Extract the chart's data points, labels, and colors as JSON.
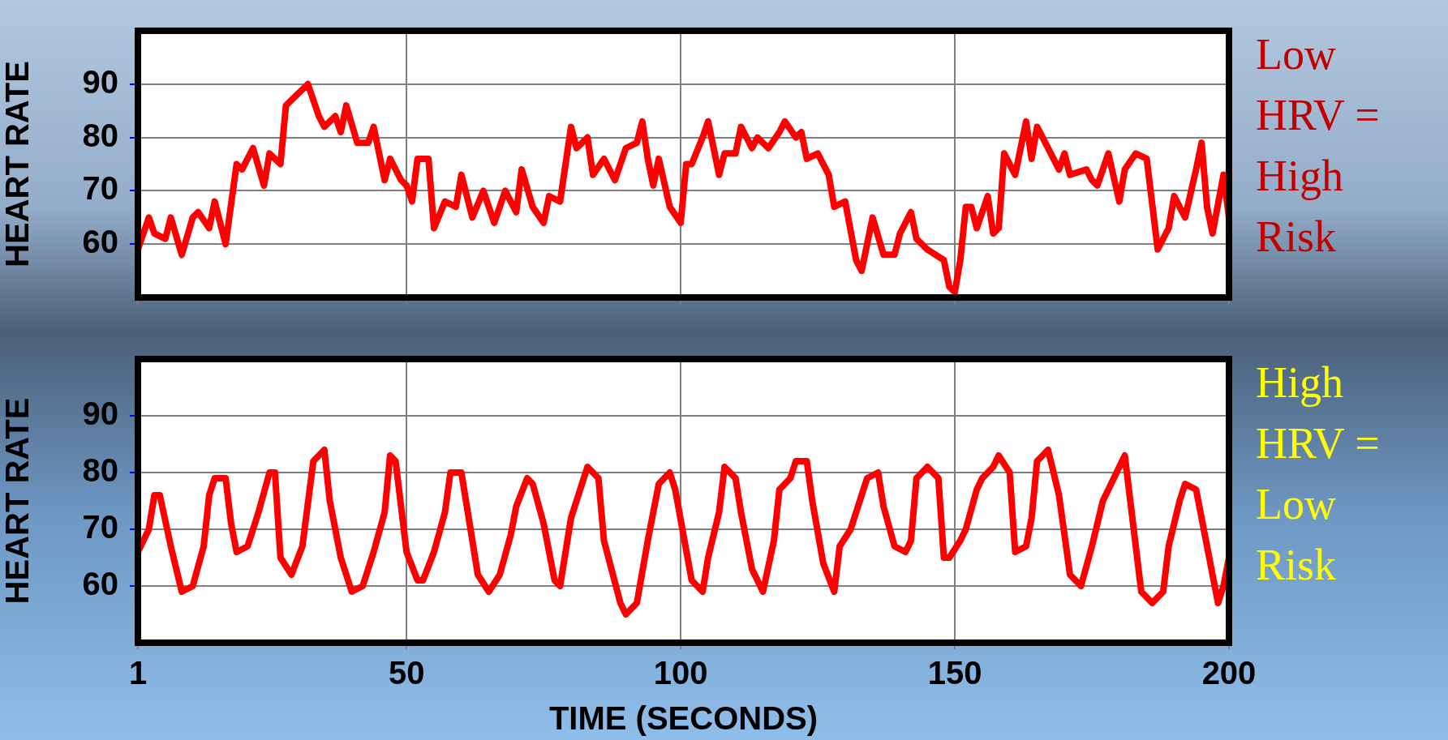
{
  "chart_data": [
    {
      "type": "line",
      "ylabel": "HEART RATE",
      "annotations": [
        "Low\nHRV =\nHigh\nRisk"
      ],
      "xlim": [
        1,
        200
      ],
      "xticks": [
        1,
        50,
        100,
        150,
        200
      ],
      "ylim": [
        50,
        100
      ],
      "yticks": [
        60,
        70,
        80,
        90
      ],
      "grid": true,
      "tick_labels": "y",
      "series": [
        {
          "color": "#ff0000",
          "x": [
            1,
            3,
            4,
            6,
            7,
            9,
            11,
            12,
            14,
            15,
            17,
            19,
            20,
            22,
            24,
            25,
            27,
            28,
            30,
            32,
            34,
            35,
            37,
            38,
            39,
            41,
            43,
            44,
            46,
            47,
            49,
            50,
            51,
            52,
            54,
            55,
            57,
            59,
            60,
            62,
            64,
            66,
            68,
            70,
            71,
            73,
            75,
            76,
            78,
            80,
            81,
            83,
            84,
            86,
            88,
            90,
            92,
            93,
            94,
            95,
            96,
            98,
            100,
            101,
            102,
            104,
            105,
            107,
            108,
            110,
            111,
            113,
            114,
            116,
            118,
            119,
            121,
            122,
            123,
            125,
            127,
            128,
            130,
            132,
            133,
            134,
            135,
            137,
            139,
            140,
            142,
            143,
            145,
            148,
            149,
            150,
            151,
            152,
            153,
            154,
            156,
            157,
            158,
            159,
            161,
            163,
            164,
            165,
            168,
            169,
            170,
            171,
            174,
            175,
            176,
            178,
            180,
            181,
            183,
            185,
            187,
            189,
            190,
            192,
            194,
            195,
            196,
            197,
            199,
            200
          ],
          "values": [
            59,
            65,
            62,
            61,
            65,
            58,
            65,
            66,
            63,
            68,
            60,
            75,
            74,
            78,
            71,
            77,
            75,
            86,
            88,
            90,
            84,
            82,
            84,
            81,
            86,
            79,
            79,
            82,
            72,
            76,
            72,
            71,
            68,
            76,
            76,
            63,
            68,
            67,
            73,
            65,
            70,
            64,
            70,
            66,
            74,
            67,
            64,
            69,
            68,
            82,
            78,
            80,
            73,
            76,
            72,
            78,
            79,
            83,
            76,
            71,
            76,
            67,
            64,
            75,
            75,
            80,
            83,
            73,
            77,
            77,
            82,
            78,
            80,
            78,
            81,
            83,
            80,
            81,
            76,
            77,
            73,
            67,
            68,
            57,
            55,
            60,
            65,
            58,
            58,
            62,
            66,
            61,
            59,
            57,
            52,
            51,
            57,
            67,
            67,
            63,
            69,
            62,
            63,
            77,
            73,
            83,
            76,
            82,
            76,
            74,
            77,
            73,
            74,
            72,
            71,
            77,
            68,
            74,
            77,
            76,
            59,
            63,
            69,
            65,
            74,
            79,
            67,
            62,
            73,
            65
          ]
        }
      ]
    },
    {
      "type": "line",
      "ylabel": "HEART RATE",
      "xlabel": "TIME (SECONDS)",
      "annotations": [
        "High\nHRV =\nLow\nRisk"
      ],
      "xlim": [
        1,
        200
      ],
      "xticks": [
        1,
        50,
        100,
        150,
        200
      ],
      "ylim": [
        50,
        100
      ],
      "yticks": [
        60,
        70,
        80,
        90
      ],
      "grid": true,
      "series": [
        {
          "color": "#ff0000",
          "x": [
            1,
            3,
            4,
            5,
            7,
            9,
            11,
            13,
            14,
            15,
            17,
            18,
            19,
            21,
            23,
            25,
            26,
            27,
            29,
            31,
            33,
            35,
            36,
            38,
            40,
            42,
            44,
            46,
            47,
            48,
            50,
            52,
            53,
            55,
            57,
            58,
            60,
            61,
            63,
            65,
            67,
            69,
            70,
            72,
            73,
            75,
            77,
            78,
            80,
            83,
            85,
            86,
            89,
            90,
            92,
            94,
            96,
            98,
            99,
            102,
            104,
            105,
            107,
            108,
            110,
            111,
            113,
            115,
            117,
            118,
            120,
            121,
            123,
            124,
            126,
            128,
            129,
            131,
            133,
            134,
            136,
            137,
            139,
            141,
            142,
            143,
            145,
            147,
            148,
            149,
            151,
            152,
            154,
            155,
            157,
            158,
            160,
            161,
            163,
            164,
            165,
            167,
            169,
            171,
            173,
            175,
            177,
            178,
            180,
            181,
            182,
            184,
            186,
            188,
            189,
            191,
            192,
            194,
            196,
            198,
            199,
            200
          ],
          "values": [
            66,
            70,
            76,
            76,
            67,
            59,
            60,
            67,
            76,
            79,
            79,
            71,
            66,
            67,
            73,
            80,
            80,
            65,
            62,
            67,
            82,
            84,
            75,
            65,
            59,
            60,
            66,
            73,
            83,
            82,
            66,
            61,
            61,
            66,
            73,
            80,
            80,
            74,
            62,
            59,
            62,
            69,
            74,
            79,
            78,
            71,
            61,
            60,
            72,
            81,
            79,
            68,
            57,
            55,
            57,
            68,
            78,
            80,
            77,
            61,
            59,
            65,
            73,
            81,
            79,
            73,
            63,
            59,
            68,
            77,
            79,
            82,
            82,
            75,
            64,
            59,
            67,
            70,
            76,
            79,
            80,
            74,
            67,
            66,
            68,
            79,
            81,
            79,
            65,
            65,
            68,
            70,
            77,
            79,
            81,
            83,
            80,
            66,
            67,
            72,
            82,
            84,
            76,
            62,
            60,
            67,
            75,
            77,
            81,
            83,
            75,
            59,
            57,
            59,
            67,
            75,
            78,
            77,
            67,
            57,
            60,
            65
          ]
        }
      ]
    }
  ]
}
